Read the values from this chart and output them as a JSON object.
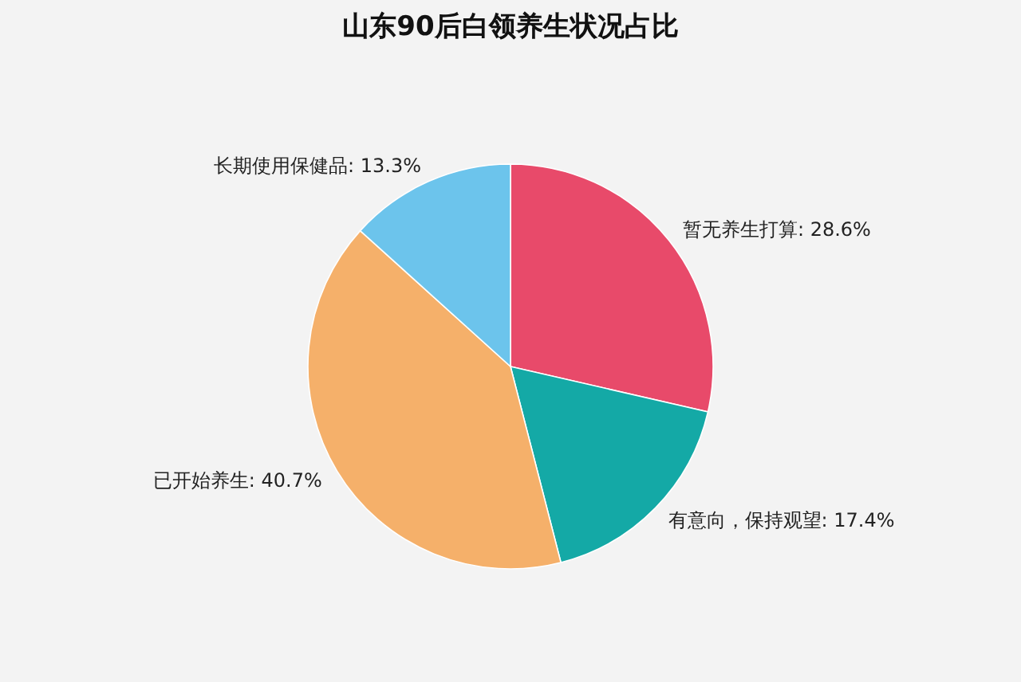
{
  "chart_data": {
    "type": "pie",
    "title": "山东90后白领养生状况占比",
    "categories": [
      "暂无养生打算",
      "有意向，保持观望",
      "已开始养生",
      "长期使用保健品"
    ],
    "values": [
      28.6,
      17.4,
      40.7,
      13.3
    ],
    "colors": [
      "#e84a6a",
      "#14a9a6",
      "#f5b06a",
      "#6cc4ec"
    ],
    "value_labels": [
      "28.6%",
      "17.4%",
      "40.7%",
      "13.3%"
    ]
  }
}
